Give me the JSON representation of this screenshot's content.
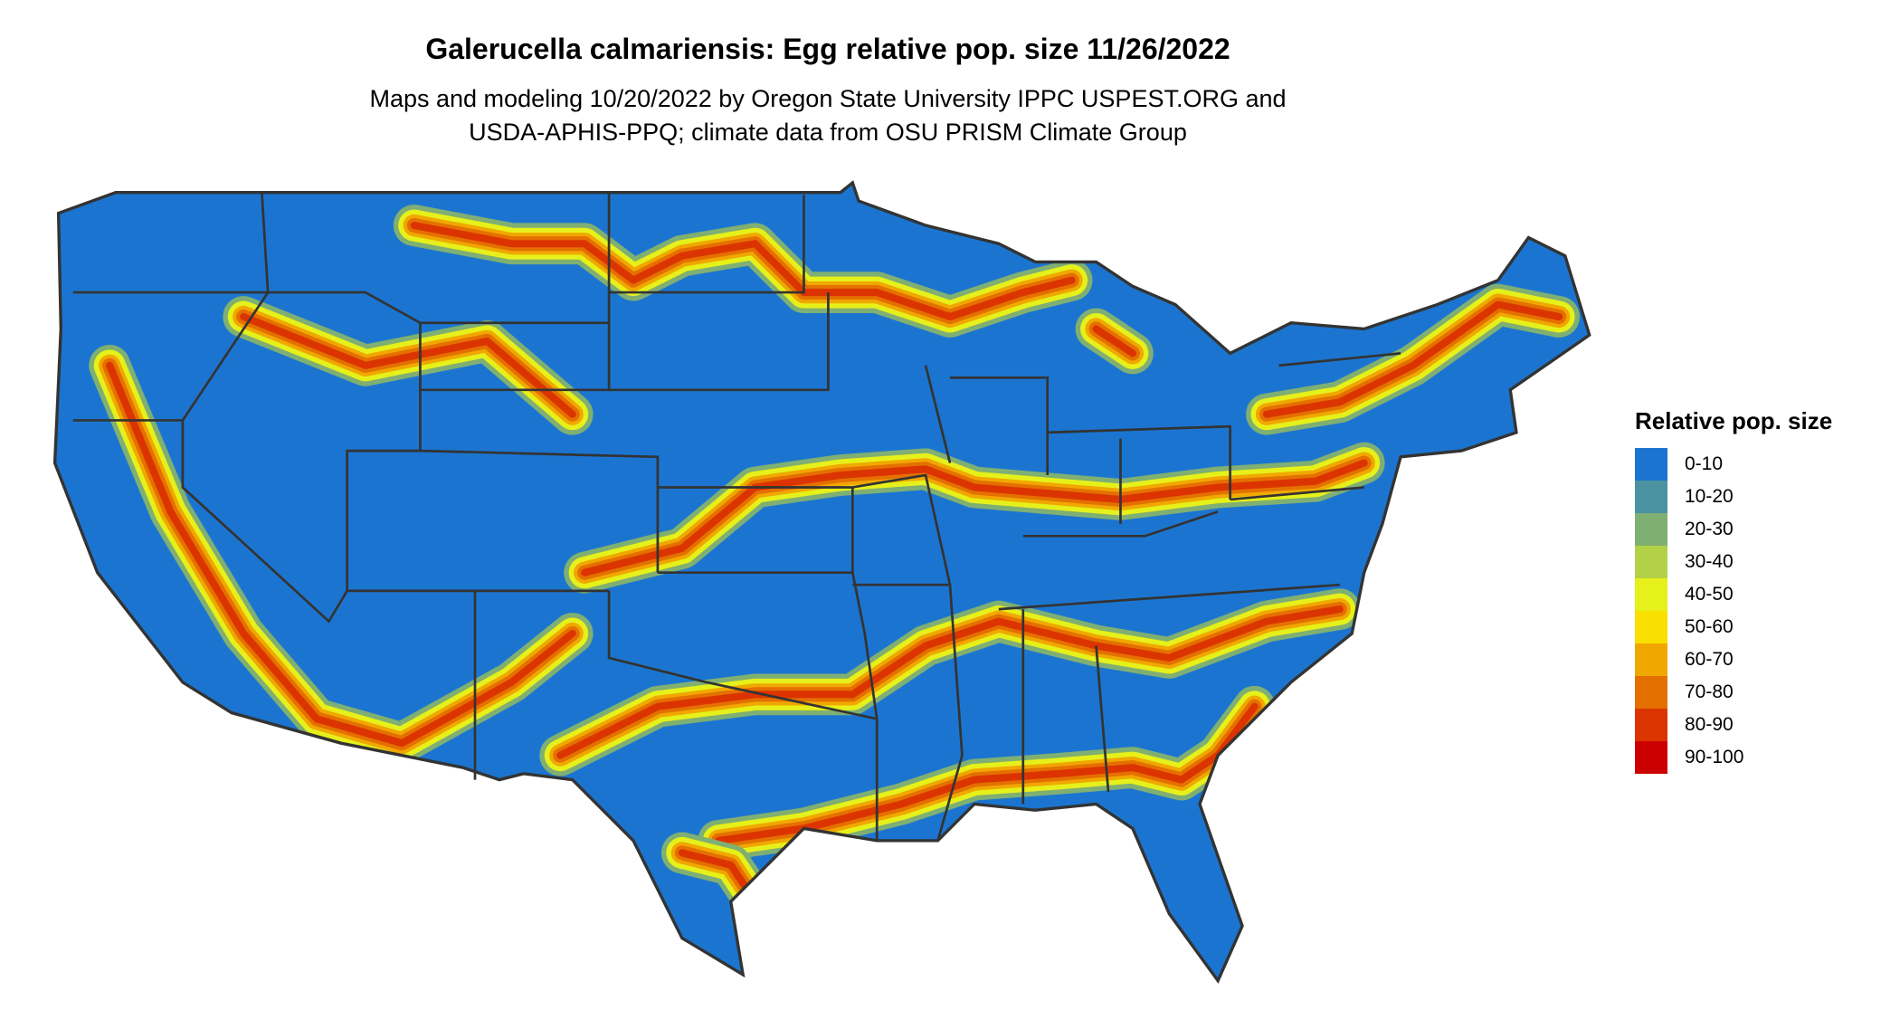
{
  "title": "Galerucella calmariensis: Egg relative pop. size 11/26/2022",
  "subtitle_lines": [
    "Maps and modeling 10/20/2022 by Oregon State University IPPC USPEST.ORG and",
    "USDA-APHIS-PPQ; climate data from OSU PRISM Climate Group"
  ],
  "legend": {
    "title": "Relative pop. size",
    "items": [
      {
        "label": "0-10",
        "color": "#1b75d0"
      },
      {
        "label": "10-20",
        "color": "#4a92a0"
      },
      {
        "label": "20-30",
        "color": "#7faf72"
      },
      {
        "label": "30-40",
        "color": "#b3d146"
      },
      {
        "label": "40-50",
        "color": "#e6f01a"
      },
      {
        "label": "50-60",
        "color": "#f9e000"
      },
      {
        "label": "60-70",
        "color": "#f0a800"
      },
      {
        "label": "70-80",
        "color": "#e47000"
      },
      {
        "label": "80-90",
        "color": "#dc3400"
      },
      {
        "label": "90-100",
        "color": "#cc0000"
      }
    ]
  },
  "map": {
    "region": "Contiguous United States",
    "border_color": "#333333"
  }
}
